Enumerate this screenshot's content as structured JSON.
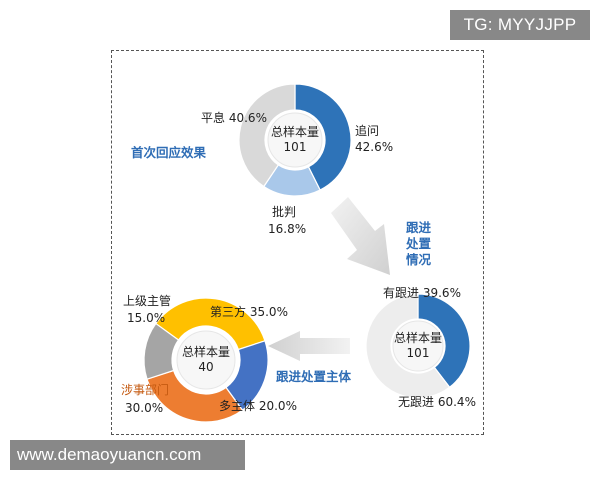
{
  "watermarks": {
    "top_right": "TG: MYYJJPP",
    "bottom_left": "www.demaoyuancn.com"
  },
  "flow_labels": {
    "first_response": "首次回应效果",
    "follow_up": [
      "跟进",
      "处置",
      "情况"
    ],
    "follow_up_subject": "跟进处置主体"
  },
  "chart_data": [
    {
      "type": "pie",
      "center_label": [
        "总样本量",
        "101"
      ],
      "slices": [
        {
          "name": "追问",
          "pct": "42.6%",
          "value": 42.6,
          "color": "#2E73B8"
        },
        {
          "name": "批判",
          "pct": "16.8%",
          "value": 16.8,
          "color": "#A9C8EA"
        },
        {
          "name": "平息",
          "pct": "40.6%",
          "value": 40.6,
          "color": "#D9D9D9"
        }
      ]
    },
    {
      "type": "pie",
      "center_label": [
        "总样本量",
        "101"
      ],
      "slices": [
        {
          "name": "有跟进",
          "pct": "39.6%",
          "value": 39.6,
          "color": "#2E73B8"
        },
        {
          "name": "无跟进",
          "pct": "60.4%",
          "value": 60.4,
          "color": "#EDEDED"
        }
      ]
    },
    {
      "type": "pie",
      "center_label": [
        "总样本量",
        "40"
      ],
      "slices": [
        {
          "name": "第三方",
          "pct": "35.0%",
          "value": 35.0,
          "color": "#FFC000"
        },
        {
          "name": "多主体",
          "pct": "20.0%",
          "value": 20.0,
          "color": "#4472C4"
        },
        {
          "name": "涉事部门",
          "pct": "30.0%",
          "value": 30.0,
          "color": "#ED7D31"
        },
        {
          "name": "上级主管",
          "pct": "15.0%",
          "value": 15.0,
          "color": "#A5A5A5"
        }
      ]
    }
  ]
}
